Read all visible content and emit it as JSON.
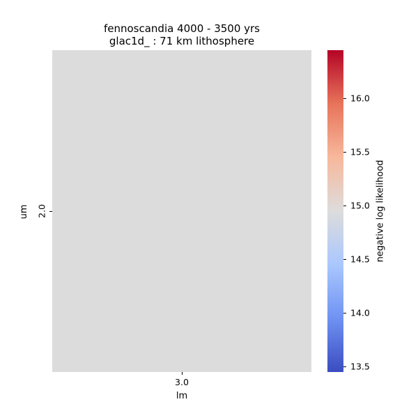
{
  "chart_data": {
    "type": "heatmap",
    "title_lines": [
      "fennoscandia 4000 - 3500 yrs",
      "glac1d_ : 71 km lithosphere"
    ],
    "xlabel": "lm",
    "ylabel": "um",
    "x_categories": [
      "3.0"
    ],
    "y_categories": [
      "2.0"
    ],
    "values": [
      [
        15.0
      ]
    ],
    "colorbar": {
      "label": "negative log likelihood",
      "vmin": 13.45,
      "vmax": 16.45,
      "ticks": [
        "13.5",
        "14.0",
        "14.5",
        "15.0",
        "15.5",
        "16.0"
      ],
      "colormap": "coolwarm"
    },
    "colors": {
      "cell": "#dddcdc",
      "cmap_stops": [
        "#3b4cc0",
        "#6f92f3",
        "#aac7fd",
        "#dddcdc",
        "#f7b89c",
        "#e7745b",
        "#b40426"
      ]
    }
  }
}
